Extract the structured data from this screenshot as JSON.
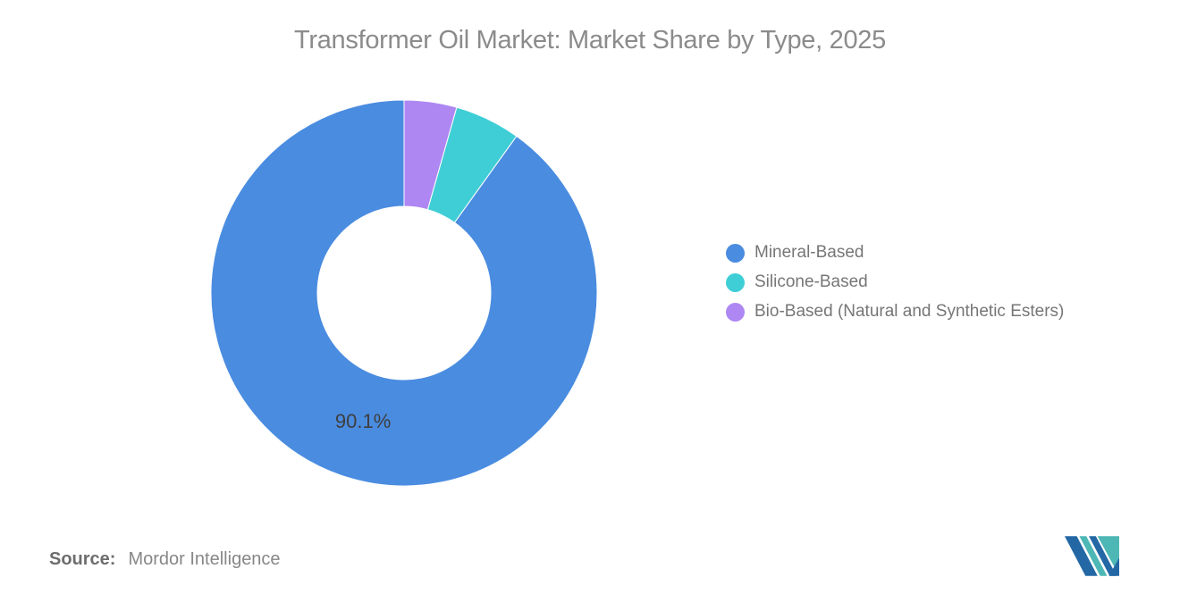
{
  "title": "Transformer Oil Market: Market Share by Type, 2025",
  "source": {
    "label": "Source:",
    "value": "Mordor Intelligence"
  },
  "colors": {
    "background": "#ffffff",
    "title_text": "#8b8b8b",
    "legend_text": "#767676",
    "data_label_text": "#3e3e3e",
    "logo_navy": "#2368a5",
    "logo_teal": "#4db7b5"
  },
  "logo": {
    "name": "mordor-intelligence-logo"
  },
  "chart_data": {
    "type": "pie",
    "subtype": "donut",
    "title": "Transformer Oil Market: Market Share by Type, 2025",
    "inner_radius_ratio": 0.45,
    "legend_position": "right",
    "clockwise_order_from_top": [
      "Bio-Based (Natural and Synthetic Esters)",
      "Silicone-Based",
      "Mineral-Based"
    ],
    "slices": [
      {
        "label": "Mineral-Based",
        "value": 90.1,
        "color": "#4a8ce0",
        "data_label": "90.1%"
      },
      {
        "label": "Silicone-Based",
        "value": 5.5,
        "color": "#3fced6",
        "data_label": ""
      },
      {
        "label": "Bio-Based (Natural and Synthetic Esters)",
        "value": 4.4,
        "color": "#ae87f3",
        "data_label": ""
      }
    ]
  }
}
